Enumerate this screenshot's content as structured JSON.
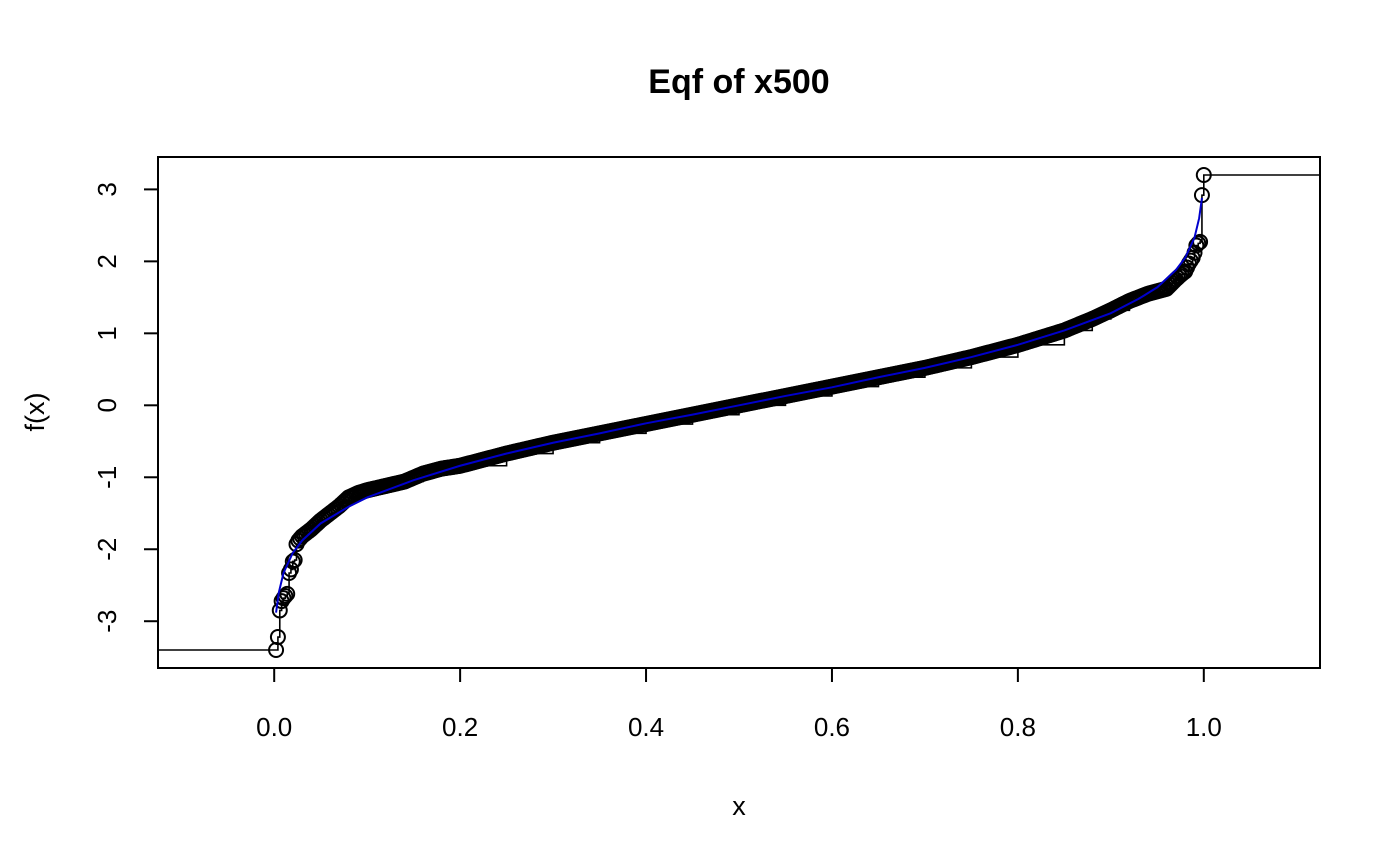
{
  "chart_data": {
    "type": "line",
    "title": "Eqf of x500",
    "xlabel": "x",
    "ylabel": "f(x)",
    "xlim": [
      -0.125,
      1.125
    ],
    "ylim": [
      -3.65,
      3.45
    ],
    "x_ticks": [
      "0.0",
      "0.2",
      "0.4",
      "0.6",
      "0.8",
      "1.0"
    ],
    "y_ticks": [
      "-3",
      "-2",
      "-1",
      "0",
      "1",
      "2",
      "3"
    ],
    "grid": false,
    "legend": "none",
    "n": 500,
    "series": [
      {
        "style": "empirical quantile steps with circle markers",
        "color": "#000000",
        "x": [
          0.002,
          0.004,
          0.006,
          0.008,
          0.01,
          0.012,
          0.014,
          0.016,
          0.018,
          0.02,
          0.022,
          0.024,
          0.026,
          0.03,
          0.035,
          0.04,
          0.05,
          0.06,
          0.07,
          0.08,
          0.09,
          0.1,
          0.12,
          0.14,
          0.16,
          0.18,
          0.2,
          0.25,
          0.3,
          0.35,
          0.4,
          0.45,
          0.5,
          0.55,
          0.6,
          0.65,
          0.7,
          0.75,
          0.8,
          0.85,
          0.88,
          0.9,
          0.92,
          0.94,
          0.96,
          0.97,
          0.976,
          0.98,
          0.984,
          0.988,
          0.99,
          0.992,
          0.994,
          0.996,
          0.998,
          1.0
        ],
        "y": [
          -3.4,
          -3.22,
          -2.85,
          -2.72,
          -2.68,
          -2.65,
          -2.62,
          -2.33,
          -2.28,
          -2.17,
          -2.15,
          -1.93,
          -1.88,
          -1.82,
          -1.77,
          -1.72,
          -1.6,
          -1.5,
          -1.4,
          -1.28,
          -1.22,
          -1.18,
          -1.12,
          -1.06,
          -0.95,
          -0.88,
          -0.84,
          -0.67,
          -0.52,
          -0.39,
          -0.26,
          -0.13,
          0.0,
          0.13,
          0.26,
          0.39,
          0.52,
          0.67,
          0.84,
          1.04,
          1.2,
          1.32,
          1.45,
          1.55,
          1.62,
          1.75,
          1.82,
          1.86,
          1.97,
          2.05,
          2.12,
          2.22,
          2.25,
          2.27,
          2.92,
          3.2
        ]
      },
      {
        "style": "smooth line",
        "color": "#0000cc",
        "x": [
          0.002,
          0.005,
          0.01,
          0.02,
          0.03,
          0.05,
          0.08,
          0.1,
          0.15,
          0.2,
          0.25,
          0.3,
          0.35,
          0.4,
          0.45,
          0.5,
          0.55,
          0.6,
          0.65,
          0.7,
          0.75,
          0.8,
          0.85,
          0.9,
          0.93,
          0.95,
          0.97,
          0.98,
          0.99,
          0.995,
          0.998
        ],
        "y": [
          -2.88,
          -2.6,
          -2.33,
          -2.05,
          -1.88,
          -1.64,
          -1.41,
          -1.28,
          -1.04,
          -0.84,
          -0.67,
          -0.52,
          -0.39,
          -0.25,
          -0.13,
          0.0,
          0.13,
          0.25,
          0.39,
          0.52,
          0.67,
          0.84,
          1.04,
          1.28,
          1.48,
          1.64,
          1.88,
          2.05,
          2.33,
          2.6,
          2.88
        ]
      }
    ]
  }
}
